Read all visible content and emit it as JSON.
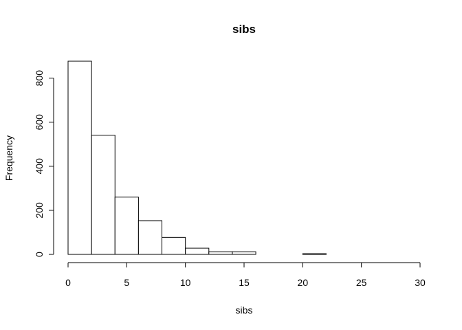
{
  "chart_data": {
    "type": "bar",
    "title": "sibs",
    "xlabel": "sibs",
    "ylabel": "Frequency",
    "bin_edges": [
      0,
      2,
      4,
      6,
      8,
      10,
      12,
      14,
      16,
      18,
      20,
      22,
      24,
      26,
      28,
      30
    ],
    "values": [
      877,
      541,
      260,
      153,
      77,
      28,
      12,
      12,
      0,
      0,
      3,
      0,
      0,
      0,
      0
    ],
    "xlim": [
      0,
      30
    ],
    "ylim": [
      0,
      877
    ],
    "x_ticks": [
      0,
      5,
      10,
      15,
      20,
      25,
      30
    ],
    "y_ticks": [
      0,
      200,
      400,
      600,
      800
    ],
    "x_tick_labels": [
      "0",
      "5",
      "10",
      "15",
      "20",
      "25",
      "30"
    ],
    "y_tick_labels": [
      "0",
      "200",
      "400",
      "600",
      "800"
    ],
    "grid": false,
    "legend": "none"
  }
}
